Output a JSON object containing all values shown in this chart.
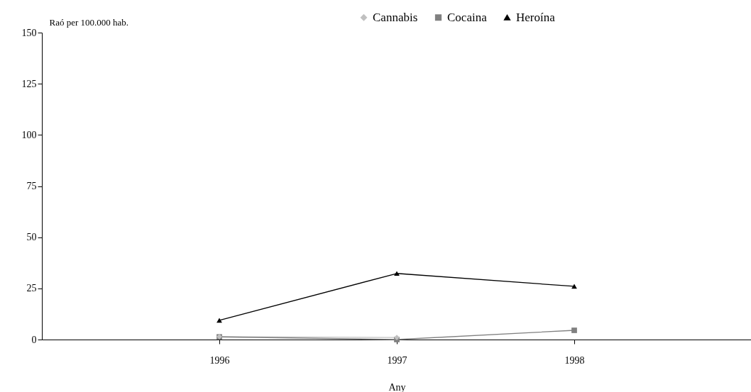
{
  "chart_data": {
    "type": "line",
    "ylabel": "Raó per 100.000 hab.",
    "xlabel": "Any",
    "categories": [
      "1996",
      "1997",
      "1998"
    ],
    "series": [
      {
        "name": "Cannabis",
        "color": "#c0c0c0",
        "marker": "diamond",
        "values": [
          1.4,
          1.0,
          null
        ]
      },
      {
        "name": "Cocaina",
        "color": "#808080",
        "marker": "square",
        "values": [
          1.3,
          0,
          4.5
        ]
      },
      {
        "name": "Heroína",
        "color": "#000000",
        "marker": "triangle",
        "values": [
          9.4,
          32.3,
          26.0
        ]
      }
    ],
    "ylim": [
      0,
      150
    ],
    "yticks": [
      0,
      25,
      50,
      75,
      100,
      125,
      150
    ],
    "grid": false,
    "legend": "top"
  }
}
